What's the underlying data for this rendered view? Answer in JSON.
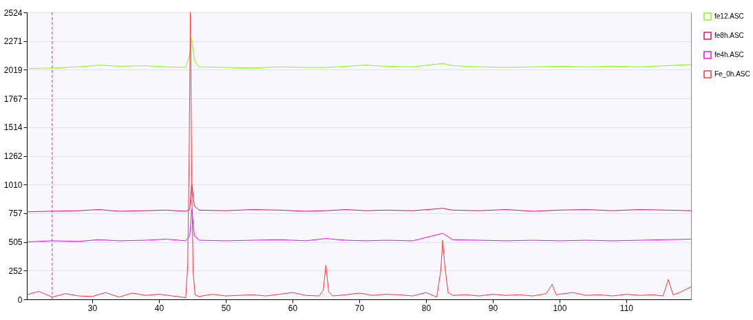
{
  "chart_data": {
    "type": "line",
    "xlim": [
      20.2,
      119.7
    ],
    "xticks": [
      30,
      40,
      50,
      60,
      70,
      80,
      90,
      100,
      110
    ],
    "ylim": [
      0,
      2524
    ],
    "yticks": [
      0,
      252,
      505,
      757,
      1010,
      1262,
      1514,
      1767,
      2019,
      2271,
      2524
    ],
    "grid": "y",
    "legend": "right",
    "line_style": "solid",
    "ref_lines": [
      {
        "axis": "x",
        "value": 24,
        "color": "#ff00ff",
        "line_style": "dashed"
      }
    ],
    "series": [
      {
        "name": "fe12.ASC",
        "color": "#80ff00",
        "x": [
          20.2,
          24,
          28,
          31,
          34,
          38,
          41,
          44,
          44.6,
          44.9,
          45.3,
          46,
          50,
          54,
          58,
          62,
          65,
          68,
          71,
          74,
          78,
          82.5,
          84,
          88,
          92,
          96,
          100,
          104,
          108,
          112,
          116,
          119.7
        ],
        "values": [
          2030,
          2035,
          2045,
          2060,
          2050,
          2055,
          2045,
          2040,
          2150,
          2293,
          2100,
          2045,
          2040,
          2035,
          2045,
          2040,
          2040,
          2050,
          2060,
          2050,
          2045,
          2075,
          2055,
          2045,
          2040,
          2045,
          2050,
          2045,
          2050,
          2045,
          2055,
          2065
        ]
      },
      {
        "name": "fe8h.ASC",
        "color": "#ff0066",
        "x": [
          20.2,
          24,
          28,
          31,
          34,
          38,
          41,
          44,
          44.6,
          44.9,
          45.3,
          46,
          50,
          54,
          58,
          62,
          65,
          68,
          71,
          74,
          78,
          82.5,
          84,
          88,
          92,
          96,
          100,
          104,
          108,
          112,
          116,
          119.7
        ],
        "values": [
          770,
          775,
          780,
          790,
          775,
          780,
          785,
          775,
          790,
          1022,
          820,
          785,
          780,
          790,
          785,
          775,
          780,
          790,
          780,
          785,
          780,
          800,
          785,
          780,
          790,
          775,
          785,
          790,
          780,
          790,
          785,
          780
        ]
      },
      {
        "name": "fe4h.ASC",
        "color": "#ff00ff",
        "x": [
          20.2,
          24,
          28,
          31,
          34,
          38,
          41,
          44,
          44.6,
          44.9,
          45.3,
          46,
          50,
          54,
          58,
          62,
          65,
          68,
          71,
          74,
          78,
          82.5,
          84,
          88,
          92,
          96,
          100,
          104,
          108,
          112,
          116,
          119.7
        ],
        "values": [
          505,
          515,
          510,
          525,
          515,
          520,
          530,
          515,
          560,
          793,
          560,
          520,
          515,
          520,
          525,
          515,
          535,
          520,
          515,
          520,
          515,
          581,
          525,
          520,
          515,
          520,
          515,
          520,
          515,
          520,
          525,
          530
        ]
      },
      {
        "name": "Fe_0h.ASC",
        "color": "#ff3333",
        "x": [
          20.2,
          22,
          24,
          26,
          28,
          30,
          32,
          34,
          36,
          38,
          40,
          42,
          44,
          44.3,
          44.5,
          44.7,
          44.9,
          45.1,
          45.4,
          46,
          48,
          50,
          52,
          54,
          56,
          58,
          60,
          62,
          64,
          64.6,
          65,
          65.4,
          66,
          68,
          70,
          72,
          74,
          76,
          78,
          80,
          81.6,
          82.2,
          82.5,
          82.8,
          83.3,
          84,
          86,
          88,
          90,
          92,
          94,
          96,
          98,
          98.9,
          99.5,
          100,
          102,
          104,
          106,
          108,
          110,
          112,
          114,
          115.5,
          116.3,
          117,
          118,
          119,
          119.7
        ],
        "values": [
          40,
          70,
          20,
          50,
          30,
          25,
          60,
          20,
          55,
          35,
          45,
          30,
          15,
          300,
          1200,
          2524,
          1100,
          250,
          40,
          25,
          45,
          30,
          35,
          40,
          30,
          45,
          60,
          35,
          30,
          80,
          302,
          70,
          30,
          40,
          55,
          35,
          45,
          40,
          30,
          60,
          20,
          250,
          520,
          300,
          60,
          35,
          40,
          30,
          45,
          35,
          40,
          30,
          50,
          133,
          40,
          45,
          60,
          35,
          40,
          30,
          45,
          35,
          40,
          30,
          175,
          40,
          60,
          90,
          110
        ]
      }
    ]
  }
}
